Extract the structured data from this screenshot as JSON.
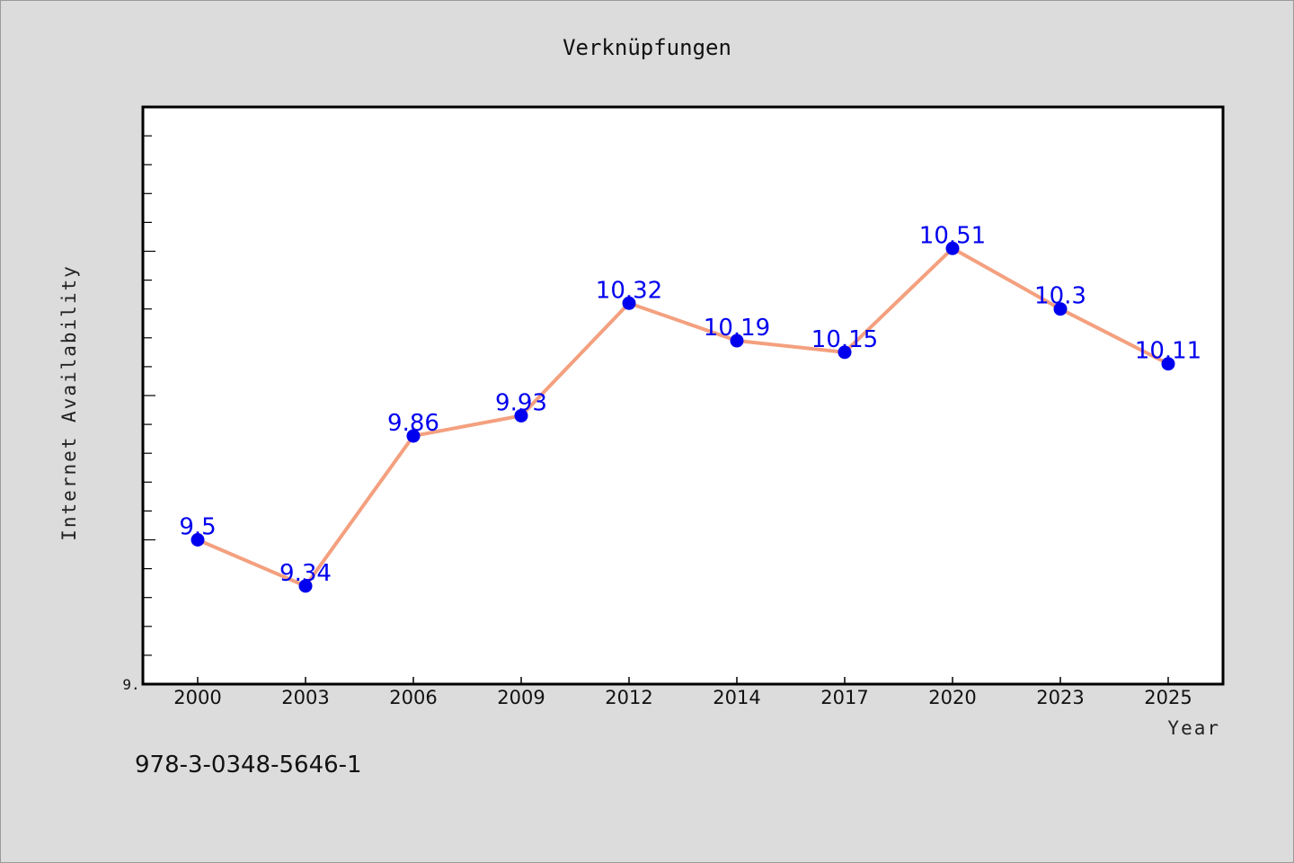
{
  "chart_data": {
    "type": "line",
    "title": "Verknüpfungen",
    "xlabel": "Year",
    "ylabel": "Internet Availability",
    "categories": [
      "2000",
      "2003",
      "2006",
      "2009",
      "2012",
      "2014",
      "2017",
      "2020",
      "2023",
      "2025"
    ],
    "series": [
      {
        "values": [
          9.5,
          9.34,
          9.86,
          9.93,
          10.32,
          10.19,
          10.15,
          10.51,
          10.3,
          10.11
        ],
        "labels": [
          "9.5",
          "9.34",
          "9.86",
          "9.93",
          "10.32",
          "10.19",
          "10.15",
          "10.51",
          "10.3",
          "10.11"
        ],
        "line_color": "#f4a07f",
        "marker_color": "#0000ee"
      }
    ],
    "y_tick_labels": [
      "9."
    ],
    "ylim": [
      9.0,
      11.0
    ],
    "grid": false,
    "background": "#ffffff",
    "page_background": "#dcdcdc"
  },
  "footer": {
    "isbn": "978-3-0348-5646-1"
  }
}
